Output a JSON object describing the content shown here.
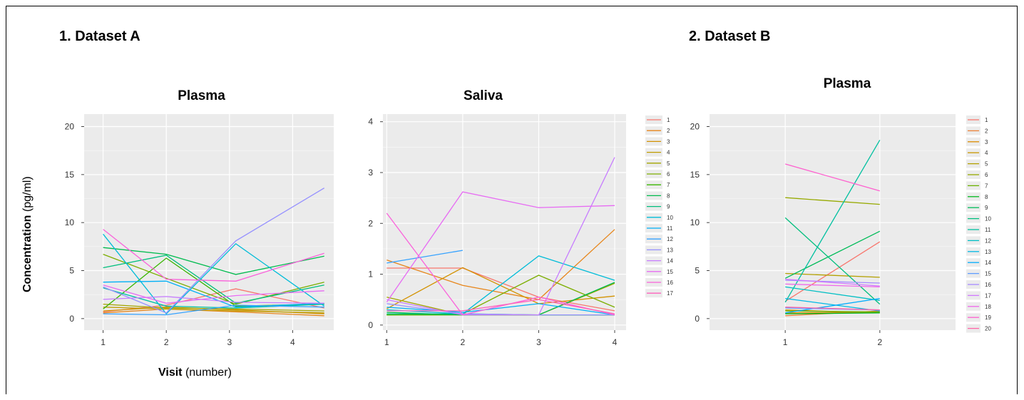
{
  "sections": {
    "a_title": "1. Dataset A",
    "b_title": "2. Dataset B"
  },
  "panels": {
    "plasma_a_title": "Plasma",
    "saliva_a_title": "Saliva",
    "plasma_b_title": "Plasma"
  },
  "axes": {
    "ylabel_bold": "Concentration",
    "ylabel_unit": " (pg/ml)",
    "xlabel_bold": "Visit",
    "xlabel_unit": " (number)"
  },
  "colors": {
    "panel_bg": "#ebebeb",
    "grid": "#ffffff"
  },
  "chart_data": [
    {
      "id": "plasma_a",
      "type": "line",
      "title": "Plasma",
      "xlabel": "Visit (number)",
      "ylabel": "Concentration (pg/ml)",
      "xlim": [
        0.7,
        4.65
      ],
      "ylim": [
        -1.2,
        21.3
      ],
      "xticks": [
        1,
        2,
        3,
        4
      ],
      "yticks": [
        0,
        5,
        10,
        15,
        20
      ],
      "x": [
        1,
        2,
        3.1,
        4.5
      ],
      "series": [
        {
          "name": "1",
          "color": "#f8766d",
          "values": [
            0.7,
            1.4,
            3.1,
            1.1
          ]
        },
        {
          "name": "2",
          "color": "#e7861b",
          "values": [
            0.6,
            1.0,
            0.7,
            0.3
          ]
        },
        {
          "name": "3",
          "color": "#d39200",
          "values": [
            0.8,
            1.2,
            0.9,
            0.5
          ]
        },
        {
          "name": "4",
          "color": "#be9c00",
          "values": [
            1.2,
            1.0,
            0.8,
            0.6
          ]
        },
        {
          "name": "5",
          "color": "#a3a500",
          "values": [
            1.5,
            1.1,
            1.0,
            0.8
          ]
        },
        {
          "name": "6",
          "color": "#7cae00",
          "values": [
            6.7,
            4.2,
            1.5,
            3.8
          ]
        },
        {
          "name": "7",
          "color": "#39b600",
          "values": [
            1.0,
            6.3,
            1.3,
            1.5
          ]
        },
        {
          "name": "8",
          "color": "#00bb4e",
          "values": [
            7.4,
            6.7,
            4.6,
            6.5
          ]
        },
        {
          "name": "9",
          "color": "#00bf7d",
          "values": [
            5.3,
            6.6,
            1.6,
            3.5
          ]
        },
        {
          "name": "10",
          "color": "#00c1a3",
          "values": [
            3.2,
            1.3,
            1.1,
            1.5
          ]
        },
        {
          "name": "11",
          "color": "#00bcd8",
          "values": [
            8.8,
            0.5,
            7.8,
            1.3
          ]
        },
        {
          "name": "12",
          "color": "#00b0f6",
          "values": [
            3.8,
            3.9,
            1.2,
            1.6
          ]
        },
        {
          "name": "13",
          "color": "#35a2ff",
          "values": [
            0.5,
            0.4,
            1.4,
            1.2
          ]
        },
        {
          "name": "14",
          "color": "#9590ff",
          "values": [
            3.3,
            0.6,
            8.1,
            13.6
          ]
        },
        {
          "name": "15",
          "color": "#c77cff",
          "values": [
            2.0,
            2.3,
            1.7,
            1.6
          ]
        },
        {
          "name": "16",
          "color": "#e76bf3",
          "values": [
            3.5,
            1.6,
            2.4,
            2.9
          ]
        },
        {
          "name": "17",
          "color": "#fa62db",
          "values": [
            9.3,
            4.1,
            3.9,
            6.8
          ]
        }
      ]
    },
    {
      "id": "saliva_a",
      "type": "line",
      "title": "Saliva",
      "xlim": [
        0.95,
        4.15
      ],
      "ylim": [
        -0.1,
        4.15
      ],
      "xticks": [
        1,
        2,
        3,
        4
      ],
      "yticks": [
        0,
        1,
        2,
        3,
        4
      ],
      "x": [
        1,
        2,
        3,
        4
      ],
      "legend": [
        "1",
        "2",
        "3",
        "4",
        "5",
        "6",
        "7",
        "8",
        "9",
        "10",
        "11",
        "12",
        "13",
        "14",
        "15",
        "16",
        "17"
      ],
      "legend_placement": "right",
      "series": [
        {
          "name": "1",
          "color": "#f8766d",
          "values": [
            1.12,
            1.12,
            0.55,
            0.28
          ]
        },
        {
          "name": "2",
          "color": "#e7861b",
          "values": [
            1.28,
            0.78,
            0.5,
            1.88
          ]
        },
        {
          "name": "3",
          "color": "#d39200",
          "values": [
            0.32,
            1.13,
            0.42,
            0.57
          ]
        },
        {
          "name": "4",
          "color": "#be9c00",
          "values": [
            0.2,
            0.2,
            0.2,
            0.2
          ]
        },
        {
          "name": "5",
          "color": "#a3a500",
          "values": [
            0.55,
            0.2,
            0.2,
            0.82
          ]
        },
        {
          "name": "6",
          "color": "#7cae00",
          "values": [
            0.2,
            0.22,
            0.98,
            0.35
          ]
        },
        {
          "name": "7",
          "color": "#39b600",
          "values": [
            0.2,
            0.2,
            0.2,
            0.2
          ]
        },
        {
          "name": "8",
          "color": "#00bb4e",
          "values": [
            0.25,
            0.2,
            0.2,
            0.84
          ]
        },
        {
          "name": "9",
          "color": "#00bf7d",
          "values": [
            0.22,
            0.22,
            0.2,
            0.2
          ]
        },
        {
          "name": "10",
          "color": "#00bcd8",
          "values": [
            0.3,
            0.22,
            1.36,
            0.88
          ]
        },
        {
          "name": "11",
          "color": "#00b0f6",
          "values": [
            0.35,
            0.25,
            0.42,
            0.2
          ]
        },
        {
          "name": "12",
          "color": "#35a2ff",
          "values": [
            1.22,
            1.47,
            null,
            null
          ]
        },
        {
          "name": "13",
          "color": "#9590ff",
          "values": [
            0.42,
            0.22,
            0.2,
            0.2
          ]
        },
        {
          "name": "14",
          "color": "#c77cff",
          "values": [
            0.5,
            0.2,
            0.2,
            3.3
          ]
        },
        {
          "name": "15",
          "color": "#e76bf3",
          "values": [
            0.45,
            2.62,
            2.31,
            2.35
          ]
        },
        {
          "name": "16",
          "color": "#fa62db",
          "values": [
            2.2,
            0.2,
            0.55,
            0.2
          ]
        },
        {
          "name": "17",
          "color": "#ff62bc",
          "values": [
            0.28,
            0.28,
            0.5,
            0.22
          ]
        }
      ]
    },
    {
      "id": "plasma_b",
      "type": "line",
      "title": "Plasma",
      "xlim": [
        0.2,
        2.8
      ],
      "ylim": [
        -1.2,
        21.3
      ],
      "xticks": [
        1,
        2
      ],
      "yticks": [
        0,
        5,
        10,
        15,
        20
      ],
      "x": [
        1,
        2
      ],
      "legend": [
        "1",
        "2",
        "3",
        "4",
        "5",
        "6",
        "7",
        "8",
        "9",
        "10",
        "11",
        "12",
        "13",
        "14",
        "15",
        "16",
        "17",
        "18",
        "19",
        "20"
      ],
      "legend_placement": "right",
      "series": [
        {
          "name": "1",
          "color": "#f8766d",
          "values": [
            1.8,
            8.0
          ]
        },
        {
          "name": "2",
          "color": "#ec8239",
          "values": [
            0.3,
            0.8
          ]
        },
        {
          "name": "3",
          "color": "#dd8d00",
          "values": [
            0.6,
            0.7
          ]
        },
        {
          "name": "4",
          "color": "#c99800",
          "values": [
            0.9,
            0.6
          ]
        },
        {
          "name": "5",
          "color": "#b3a000",
          "values": [
            4.7,
            4.3
          ]
        },
        {
          "name": "6",
          "color": "#96a900",
          "values": [
            12.6,
            11.9
          ]
        },
        {
          "name": "7",
          "color": "#6bb100",
          "values": [
            0.8,
            0.7
          ]
        },
        {
          "name": "8",
          "color": "#00b81f",
          "values": [
            0.5,
            0.6
          ]
        },
        {
          "name": "9",
          "color": "#00bc59",
          "values": [
            4.2,
            9.1
          ]
        },
        {
          "name": "10",
          "color": "#00bf7d",
          "values": [
            10.5,
            1.5
          ]
        },
        {
          "name": "11",
          "color": "#00c0a0",
          "values": [
            1.7,
            18.6
          ]
        },
        {
          "name": "12",
          "color": "#00bfc4",
          "values": [
            3.3,
            1.9
          ]
        },
        {
          "name": "13",
          "color": "#00b8e5",
          "values": [
            2.1,
            0.8
          ]
        },
        {
          "name": "14",
          "color": "#00acfc",
          "values": [
            0.6,
            2.1
          ]
        },
        {
          "name": "15",
          "color": "#5f9cff",
          "values": [
            1.1,
            0.9
          ]
        },
        {
          "name": "16",
          "color": "#a58aff",
          "values": [
            4.0,
            3.7
          ]
        },
        {
          "name": "17",
          "color": "#d078ff",
          "values": [
            4.1,
            3.4
          ]
        },
        {
          "name": "18",
          "color": "#f066ea",
          "values": [
            3.6,
            3.3
          ]
        },
        {
          "name": "19",
          "color": "#fe61cf",
          "values": [
            16.1,
            13.3
          ]
        },
        {
          "name": "20",
          "color": "#ff66a8",
          "values": [
            1.2,
            0.9
          ]
        }
      ]
    }
  ]
}
